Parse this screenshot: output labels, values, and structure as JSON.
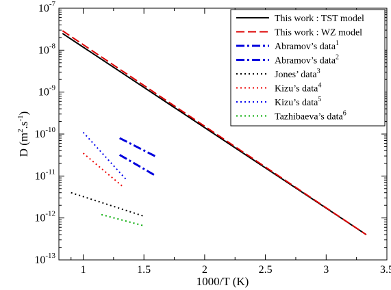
{
  "chart_data": {
    "type": "line",
    "title": "",
    "xlabel": "1000/T (K)",
    "ylabel": "D (m²·s⁻¹)",
    "ylabel_parts": {
      "base": "D (m",
      "exp1": "2",
      "mid": ".s",
      "exp2": "-1",
      "end": ")"
    },
    "xlim": [
      0.8,
      3.5
    ],
    "ylim_log10": [
      -13,
      -7
    ],
    "y_scale": "log",
    "grid": false,
    "legend_position": "top-right",
    "x_ticks": [
      {
        "value": 1,
        "label": "1"
      },
      {
        "value": 1.5,
        "label": "1.5"
      },
      {
        "value": 2,
        "label": "2"
      },
      {
        "value": 2.5,
        "label": "2.5"
      },
      {
        "value": 3,
        "label": "3"
      },
      {
        "value": 3.5,
        "label": "3.5"
      }
    ],
    "y_ticks": [
      {
        "exp": -13,
        "base": "10",
        "sup": "-13"
      },
      {
        "exp": -12,
        "base": "10",
        "sup": "-12"
      },
      {
        "exp": -11,
        "base": "10",
        "sup": "-11"
      },
      {
        "exp": -10,
        "base": "10",
        "sup": "-10"
      },
      {
        "exp": -9,
        "base": "10",
        "sup": "-9"
      },
      {
        "exp": -8,
        "base": "10",
        "sup": "-8"
      },
      {
        "exp": -7,
        "base": "10",
        "sup": "-7"
      }
    ],
    "series": [
      {
        "name": "This work : TST model",
        "sup": "",
        "color": "#000000",
        "style": "solid",
        "points": [
          [
            0.83,
            2.5e-08
          ],
          [
            3.33,
            4e-13
          ]
        ]
      },
      {
        "name": "This work : WZ model",
        "sup": "",
        "color": "#dd0000",
        "style": "dash",
        "points": [
          [
            0.83,
            2.9e-08
          ],
          [
            3.33,
            4e-13
          ]
        ]
      },
      {
        "name": "Abramov’s data",
        "sup": "1",
        "color": "#0000dd",
        "style": "dashdot",
        "points": [
          [
            1.3,
            8e-11
          ],
          [
            1.6,
            2.9e-11
          ]
        ]
      },
      {
        "name": "Abramov’s data",
        "sup": "2",
        "color": "#0000dd",
        "style": "dashdot",
        "points": [
          [
            1.3,
            3.2e-11
          ],
          [
            1.6,
            1e-11
          ]
        ]
      },
      {
        "name": "Jones’ data",
        "sup": "3",
        "color": "#000000",
        "style": "dot",
        "points": [
          [
            0.9,
            4e-12
          ],
          [
            1.5,
            1.1e-12
          ]
        ]
      },
      {
        "name": "Kizu’s data",
        "sup": "4",
        "color": "#ee0000",
        "style": "dot",
        "points": [
          [
            1.0,
            3.5e-11
          ],
          [
            1.33,
            5.5e-12
          ]
        ]
      },
      {
        "name": "Kizu’s data",
        "sup": "5",
        "color": "#0000ee",
        "style": "dot",
        "points": [
          [
            1.0,
            1.1e-10
          ],
          [
            1.35,
            8.5e-12
          ]
        ]
      },
      {
        "name": "Tazhibaeva’s data",
        "sup": "6",
        "color": "#00aa00",
        "style": "dot",
        "points": [
          [
            1.15,
            1.2e-12
          ],
          [
            1.5,
            6.5e-13
          ]
        ]
      }
    ]
  }
}
